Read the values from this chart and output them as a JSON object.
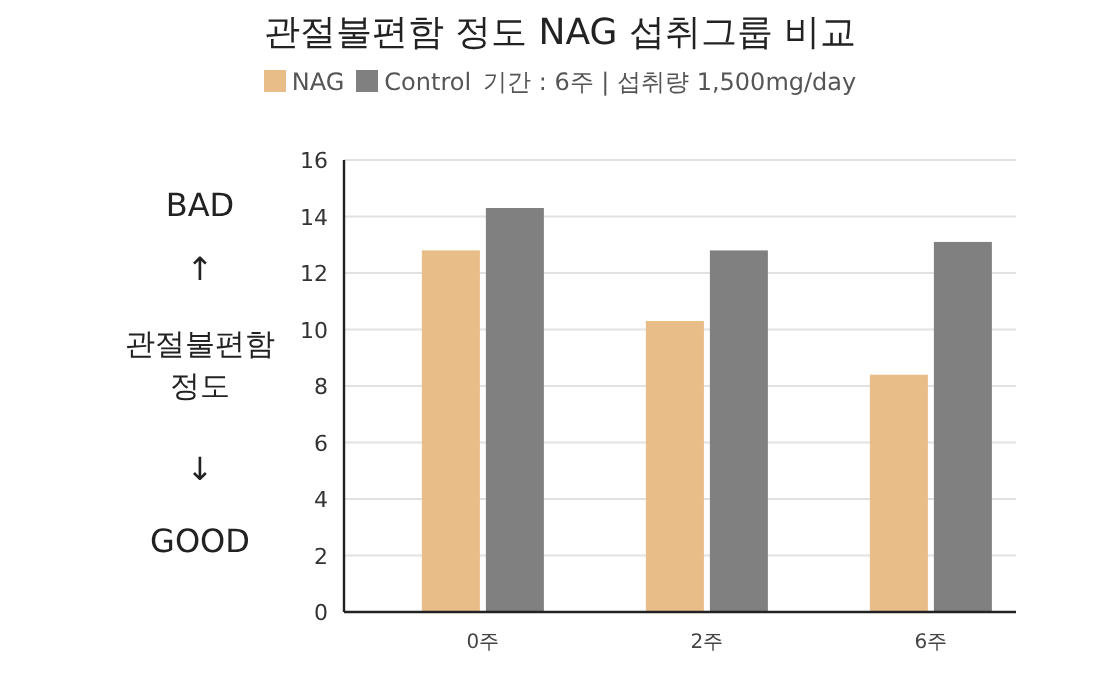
{
  "chart_data": {
    "type": "bar",
    "title": "관절불편함 정도 NAG 섭취그룹 비교",
    "subtitle": "기간 : 6주 | 섭취량 1,500mg/day",
    "categories": [
      "0주",
      "2주",
      "6주"
    ],
    "series": [
      {
        "name": "NAG",
        "color": "#e8bd87",
        "values": [
          12.8,
          10.3,
          8.4
        ]
      },
      {
        "name": "Control",
        "color": "#808080",
        "values": [
          14.3,
          12.8,
          13.1
        ]
      }
    ],
    "ylim": [
      0,
      16
    ],
    "yticks": [
      0,
      2,
      4,
      6,
      8,
      10,
      12,
      14,
      16
    ],
    "grid": "y",
    "legend": "top",
    "annotations": [
      "BAD",
      "↑",
      "관절불편함 정도",
      "↓",
      "GOOD"
    ]
  }
}
